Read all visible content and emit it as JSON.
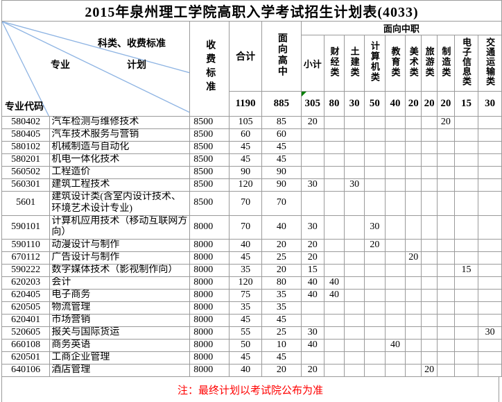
{
  "title": "2015年泉州理工学院高职入学考试招生计划表(4033)",
  "header": {
    "corner": {
      "category_fee": "科类、收费标准",
      "major": "专业",
      "plan": "计划",
      "major_code": "专业代码"
    },
    "fee_standard": "收费标准",
    "grand_total": "合计",
    "for_high_school": "面向高中",
    "for_vocational_group": "面向中职",
    "vocational_categories": [
      "小计",
      "财经类",
      "土建类",
      "计算机类",
      "教育类",
      "美术类",
      "旅游类",
      "制造类",
      "电子信息类",
      "交通运输类"
    ]
  },
  "totals": {
    "grand": "1190",
    "high_school": "885",
    "vocational": [
      "305",
      "80",
      "30",
      "50",
      "40",
      "20",
      "20",
      "20",
      "15",
      "30"
    ]
  },
  "rows": [
    {
      "code": "580402",
      "name": "汽车检测与维修技术",
      "fee": "8500",
      "total": "105",
      "high_school": "85",
      "vocational": [
        "20",
        "",
        "",
        "",
        "",
        "",
        "",
        "20",
        "",
        ""
      ]
    },
    {
      "code": "580405",
      "name": "汽车技术服务与营销",
      "fee": "8500",
      "total": "60",
      "high_school": "60",
      "vocational": [
        "",
        "",
        "",
        "",
        "",
        "",
        "",
        "",
        "",
        ""
      ]
    },
    {
      "code": "580102",
      "name": "机械制造与自动化",
      "fee": "8500",
      "total": "45",
      "high_school": "45",
      "vocational": [
        "",
        "",
        "",
        "",
        "",
        "",
        "",
        "",
        "",
        ""
      ]
    },
    {
      "code": "580201",
      "name": "机电一体化技术",
      "fee": "8500",
      "total": "45",
      "high_school": "45",
      "vocational": [
        "",
        "",
        "",
        "",
        "",
        "",
        "",
        "",
        "",
        ""
      ]
    },
    {
      "code": "560502",
      "name": "工程造价",
      "fee": "8500",
      "total": "90",
      "high_school": "90",
      "vocational": [
        "",
        "",
        "",
        "",
        "",
        "",
        "",
        "",
        "",
        ""
      ]
    },
    {
      "code": "560301",
      "name": "建筑工程技术",
      "fee": "8500",
      "total": "120",
      "high_school": "90",
      "vocational": [
        "30",
        "",
        "30",
        "",
        "",
        "",
        "",
        "",
        "",
        ""
      ]
    },
    {
      "code": "5601",
      "name": "建筑设计类(含室内设计技术、环境艺术设计专业)",
      "fee": "8500",
      "total": "70",
      "high_school": "70",
      "vocational": [
        "",
        "",
        "",
        "",
        "",
        "",
        "",
        "",
        "",
        ""
      ]
    },
    {
      "code": "590101",
      "name": "计算机应用技术（移动互联网方向）",
      "fee": "8000",
      "total": "70",
      "high_school": "40",
      "vocational": [
        "30",
        "",
        "",
        "30",
        "",
        "",
        "",
        "",
        "",
        ""
      ]
    },
    {
      "code": "590110",
      "name": "动漫设计与制作",
      "fee": "8000",
      "total": "40",
      "high_school": "20",
      "vocational": [
        "20",
        "",
        "",
        "20",
        "",
        "",
        "",
        "",
        "",
        ""
      ]
    },
    {
      "code": "670112",
      "name": "广告设计与制作",
      "fee": "8000",
      "total": "45",
      "high_school": "25",
      "vocational": [
        "20",
        "",
        "",
        "",
        "",
        "20",
        "",
        "",
        "",
        ""
      ]
    },
    {
      "code": "590222",
      "name": "数字媒体技术（影视制作向）",
      "fee": "8000",
      "total": "35",
      "high_school": "20",
      "vocational": [
        "15",
        "",
        "",
        "",
        "",
        "",
        "",
        "",
        "15",
        ""
      ]
    },
    {
      "code": "620203",
      "name": "会计",
      "fee": "8000",
      "total": "120",
      "high_school": "80",
      "vocational": [
        "40",
        "40",
        "",
        "",
        "",
        "",
        "",
        "",
        "",
        ""
      ]
    },
    {
      "code": "620405",
      "name": "电子商务",
      "fee": "8000",
      "total": "75",
      "high_school": "35",
      "vocational": [
        "40",
        "40",
        "",
        "",
        "",
        "",
        "",
        "",
        "",
        ""
      ]
    },
    {
      "code": "620505",
      "name": "物流管理",
      "fee": "8000",
      "total": "35",
      "high_school": "35",
      "vocational": [
        "",
        "",
        "",
        "",
        "",
        "",
        "",
        "",
        "",
        ""
      ]
    },
    {
      "code": "620401",
      "name": "市场营销",
      "fee": "8000",
      "total": "45",
      "high_school": "45",
      "vocational": [
        "",
        "",
        "",
        "",
        "",
        "",
        "",
        "",
        "",
        ""
      ]
    },
    {
      "code": "520605",
      "name": "报关与国际货运",
      "fee": "8000",
      "total": "55",
      "high_school": "25",
      "vocational": [
        "30",
        "",
        "",
        "",
        "",
        "",
        "",
        "",
        "",
        "30"
      ]
    },
    {
      "code": "660108",
      "name": "商务英语",
      "fee": "8000",
      "total": "50",
      "high_school": "10",
      "vocational": [
        "40",
        "",
        "",
        "",
        "40",
        "",
        "",
        "",
        "",
        ""
      ]
    },
    {
      "code": "620501",
      "name": "工商企业管理",
      "fee": "8000",
      "total": "45",
      "high_school": "45",
      "vocational": [
        "",
        "",
        "",
        "",
        "",
        "",
        "",
        "",
        "",
        ""
      ]
    },
    {
      "code": "640106",
      "name": "酒店管理",
      "fee": "8000",
      "total": "40",
      "high_school": "20",
      "vocational": [
        "20",
        "",
        "",
        "",
        "",
        "",
        "20",
        "",
        "",
        ""
      ]
    }
  ],
  "note": "注：最终计划以考试院公布为准",
  "colors": {
    "diagonal_line": "#8EB4E3",
    "note_text": "#FF0000",
    "grid_line": "#9A9A9A",
    "error_indicator": "#008000"
  }
}
